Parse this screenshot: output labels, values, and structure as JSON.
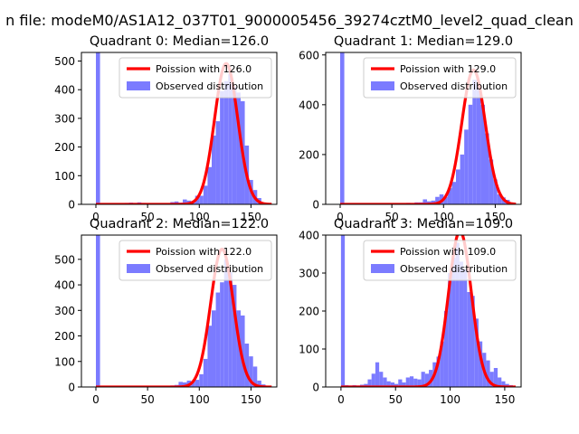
{
  "suptitle": "n file: modeM0/AS1A12_037T01_9000005456_39274cztM0_level2_quad_clean",
  "colors": {
    "fit": "#ff0000",
    "bars": "#7b7bff",
    "axes": "#000000"
  },
  "legend_labels": {
    "observed": "Observed distribution"
  },
  "chart_data": [
    {
      "type": "bar",
      "title": "Quadrant 0: Median=126.0",
      "legend_fit": "Poission with 126.0",
      "legend_position": "upper-right",
      "median": 126.0,
      "xlim": [
        -14,
        175
      ],
      "ylim": [
        0,
        530
      ],
      "xticks": [
        0,
        50,
        100,
        150
      ],
      "yticks": [
        0,
        100,
        200,
        300,
        400,
        500
      ],
      "bin_width": 4,
      "bins": [
        [
          0,
          530
        ],
        [
          28,
          5
        ],
        [
          32,
          6
        ],
        [
          36,
          5
        ],
        [
          40,
          7
        ],
        [
          44,
          5
        ],
        [
          48,
          4
        ],
        [
          52,
          3
        ],
        [
          56,
          3
        ],
        [
          60,
          3
        ],
        [
          64,
          4
        ],
        [
          68,
          3
        ],
        [
          72,
          8
        ],
        [
          76,
          10
        ],
        [
          80,
          6
        ],
        [
          84,
          17
        ],
        [
          88,
          13
        ],
        [
          92,
          11
        ],
        [
          96,
          30
        ],
        [
          100,
          30
        ],
        [
          104,
          65
        ],
        [
          108,
          130
        ],
        [
          112,
          240
        ],
        [
          116,
          290
        ],
        [
          120,
          395
        ],
        [
          124,
          430
        ],
        [
          128,
          455
        ],
        [
          132,
          410
        ],
        [
          136,
          390
        ],
        [
          140,
          360
        ],
        [
          144,
          205
        ],
        [
          148,
          85
        ],
        [
          152,
          50
        ],
        [
          156,
          22
        ],
        [
          160,
          5
        ],
        [
          164,
          3
        ]
      ],
      "fit_range": [
        0,
        170
      ]
    },
    {
      "type": "bar",
      "title": "Quadrant 1: Median=129.0",
      "legend_fit": "Poission with 129.0",
      "legend_position": "upper-right",
      "median": 129.0,
      "xlim": [
        -14,
        175
      ],
      "ylim": [
        0,
        610
      ],
      "xticks": [
        0,
        50,
        100,
        150
      ],
      "yticks": [
        0,
        200,
        400,
        600
      ],
      "bin_width": 4,
      "bins": [
        [
          0,
          610
        ],
        [
          48,
          4
        ],
        [
          56,
          4
        ],
        [
          64,
          6
        ],
        [
          72,
          8
        ],
        [
          76,
          8
        ],
        [
          80,
          20
        ],
        [
          84,
          12
        ],
        [
          88,
          15
        ],
        [
          92,
          30
        ],
        [
          96,
          40
        ],
        [
          100,
          30
        ],
        [
          104,
          65
        ],
        [
          108,
          90
        ],
        [
          112,
          140
        ],
        [
          116,
          200
        ],
        [
          120,
          300
        ],
        [
          124,
          400
        ],
        [
          128,
          500
        ],
        [
          132,
          480
        ],
        [
          136,
          400
        ],
        [
          140,
          285
        ],
        [
          144,
          180
        ],
        [
          148,
          100
        ],
        [
          152,
          40
        ],
        [
          156,
          28
        ],
        [
          160,
          18
        ],
        [
          164,
          5
        ]
      ],
      "fit_range": [
        0,
        170
      ]
    },
    {
      "type": "bar",
      "title": "Quadrant 2: Median=122.0",
      "legend_fit": "Poission with 122.0",
      "legend_position": "upper-right",
      "median": 122.0,
      "xlim": [
        -14,
        175
      ],
      "ylim": [
        0,
        595
      ],
      "xticks": [
        0,
        50,
        100,
        150
      ],
      "yticks": [
        0,
        100,
        200,
        300,
        400,
        500
      ],
      "bin_width": 4,
      "bins": [
        [
          0,
          595
        ],
        [
          60,
          3
        ],
        [
          68,
          4
        ],
        [
          72,
          6
        ],
        [
          76,
          8
        ],
        [
          80,
          20
        ],
        [
          84,
          18
        ],
        [
          88,
          25
        ],
        [
          92,
          22
        ],
        [
          96,
          28
        ],
        [
          100,
          50
        ],
        [
          104,
          110
        ],
        [
          108,
          240
        ],
        [
          112,
          300
        ],
        [
          116,
          370
        ],
        [
          120,
          410
        ],
        [
          124,
          500
        ],
        [
          128,
          450
        ],
        [
          132,
          400
        ],
        [
          136,
          300
        ],
        [
          140,
          280
        ],
        [
          144,
          170
        ],
        [
          148,
          120
        ],
        [
          152,
          80
        ],
        [
          156,
          25
        ],
        [
          160,
          10
        ]
      ],
      "fit_range": [
        0,
        170
      ]
    },
    {
      "type": "bar",
      "title": "Quadrant 3: Median=109.0",
      "legend_fit": "Poission with 109.0",
      "legend_position": "upper-right",
      "median": 109.0,
      "xlim": [
        -14,
        165
      ],
      "ylim": [
        0,
        400
      ],
      "xticks": [
        0,
        50,
        100,
        150
      ],
      "yticks": [
        0,
        100,
        200,
        300,
        400
      ],
      "bin_width": 3.5,
      "bins": [
        [
          0,
          400
        ],
        [
          3.5,
          5
        ],
        [
          7,
          4
        ],
        [
          10.5,
          5
        ],
        [
          14,
          4
        ],
        [
          17.5,
          6
        ],
        [
          21,
          8
        ],
        [
          24.5,
          20
        ],
        [
          28,
          35
        ],
        [
          31.5,
          65
        ],
        [
          35,
          40
        ],
        [
          38.5,
          25
        ],
        [
          42,
          15
        ],
        [
          45.5,
          12
        ],
        [
          49,
          8
        ],
        [
          52.5,
          20
        ],
        [
          56,
          12
        ],
        [
          59.5,
          25
        ],
        [
          63,
          28
        ],
        [
          66.5,
          22
        ],
        [
          70,
          20
        ],
        [
          73.5,
          40
        ],
        [
          77,
          35
        ],
        [
          80.5,
          45
        ],
        [
          84,
          65
        ],
        [
          87.5,
          80
        ],
        [
          91,
          120
        ],
        [
          94.5,
          200
        ],
        [
          98,
          300
        ],
        [
          101.5,
          340
        ],
        [
          105,
          380
        ],
        [
          108.5,
          330
        ],
        [
          112,
          310
        ],
        [
          115.5,
          250
        ],
        [
          119,
          240
        ],
        [
          122.5,
          180
        ],
        [
          126,
          120
        ],
        [
          129.5,
          90
        ],
        [
          133,
          70
        ],
        [
          136.5,
          40
        ],
        [
          140,
          50
        ],
        [
          143.5,
          25
        ],
        [
          147,
          15
        ],
        [
          150.5,
          8
        ],
        [
          154,
          5
        ]
      ],
      "fit_range": [
        0,
        160
      ]
    }
  ]
}
